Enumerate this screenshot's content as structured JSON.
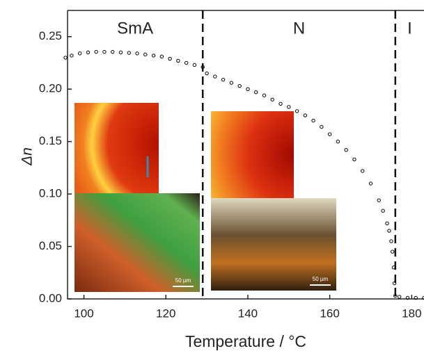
{
  "chart_data": {
    "type": "scatter",
    "xlabel": "Temperature / °C",
    "ylabel": "Δn",
    "x": [
      95.5,
      97,
      99,
      101,
      103,
      105,
      107,
      109,
      111,
      113,
      115,
      117,
      119,
      121,
      123,
      125,
      127,
      129,
      130,
      132,
      134,
      136,
      138,
      140,
      142,
      144,
      146,
      148,
      150,
      152,
      154,
      156,
      158,
      160,
      162,
      164,
      166,
      168,
      170,
      172,
      173,
      174,
      174.5,
      175,
      175.3,
      175.6,
      175.8,
      176,
      177,
      179,
      181,
      183
    ],
    "values": [
      0.23,
      0.232,
      0.234,
      0.235,
      0.2355,
      0.2355,
      0.2355,
      0.235,
      0.2345,
      0.234,
      0.233,
      0.232,
      0.231,
      0.229,
      0.227,
      0.225,
      0.223,
      0.221,
      0.215,
      0.212,
      0.209,
      0.206,
      0.203,
      0.2,
      0.197,
      0.194,
      0.19,
      0.186,
      0.183,
      0.179,
      0.175,
      0.17,
      0.164,
      0.157,
      0.15,
      0.142,
      0.133,
      0.122,
      0.11,
      0.094,
      0.084,
      0.072,
      0.065,
      0.055,
      0.045,
      0.03,
      0.015,
      0.003,
      0.002,
      0.001,
      0.001,
      0.001
    ],
    "color": "#000000",
    "xlim": [
      96,
      183
    ],
    "ylim": [
      0,
      0.275
    ],
    "xticks": [
      100,
      120,
      140,
      160,
      180
    ],
    "yticks": [
      {
        "value": 0,
        "label": "0.00"
      },
      0.05,
      {
        "value": 0.1,
        "label": "0.10"
      },
      0.15,
      {
        "value": 0.2,
        "label": "0.20"
      },
      0.25
    ],
    "transitions": [
      129,
      176
    ],
    "phase_labels": [
      "SmA",
      "N",
      "I"
    ],
    "scale_bar_labels": [
      "50 µm",
      "50 µm"
    ]
  }
}
